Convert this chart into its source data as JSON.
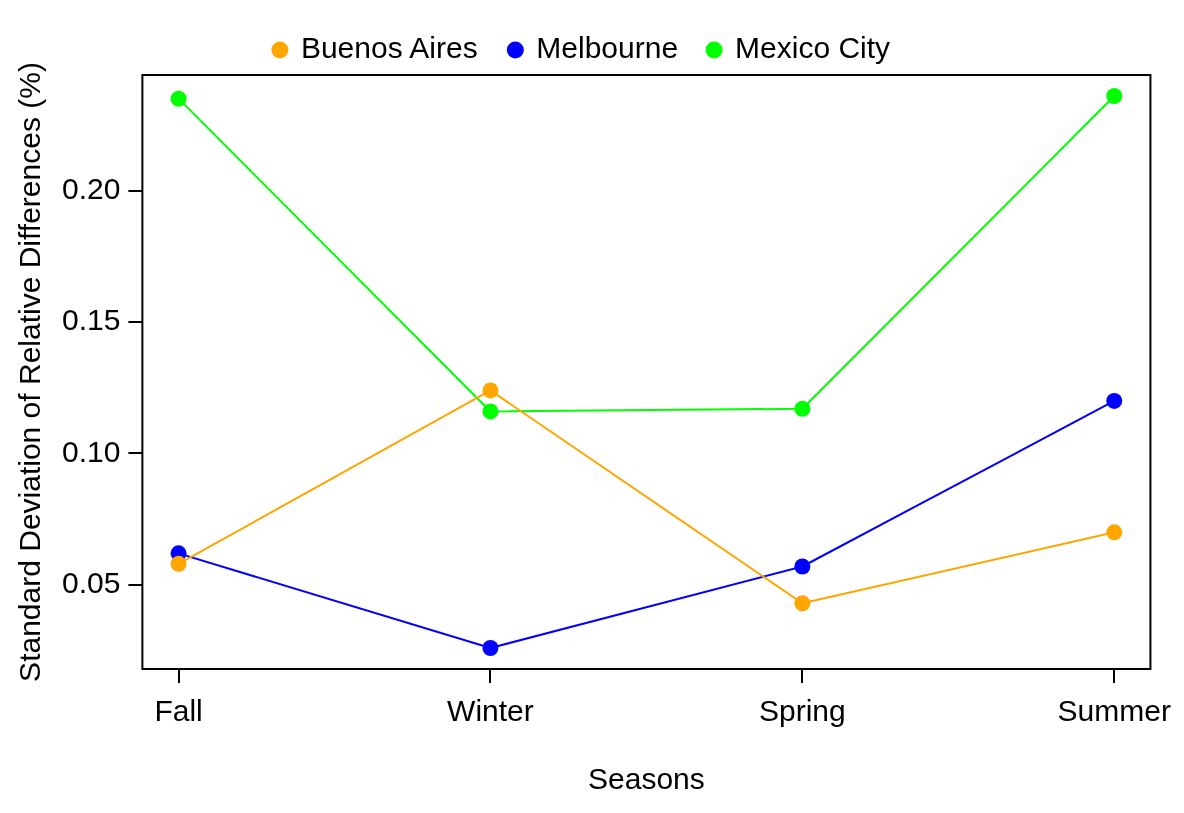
{
  "chart_data": {
    "type": "line",
    "xlabel": "Seasons",
    "ylabel": "Standard Deviation of Relative Differences (%)",
    "categories": [
      "Fall",
      "Winter",
      "Spring",
      "Summer"
    ],
    "series": [
      {
        "name": "Buenos Aires",
        "color": "#ffa500",
        "values": [
          0.058,
          0.124,
          0.043,
          0.07
        ]
      },
      {
        "name": "Melbourne",
        "color": "#0000ff",
        "values": [
          0.062,
          0.026,
          0.057,
          0.12
        ]
      },
      {
        "name": "Mexico City",
        "color": "#00ff00",
        "values": [
          0.235,
          0.116,
          0.117,
          0.236
        ]
      }
    ],
    "ylim": [
      0.018,
      0.244
    ],
    "yticks": [
      {
        "value": 0.05,
        "label": "0.05"
      },
      {
        "value": 0.1,
        "label": "0.10"
      },
      {
        "value": 0.15,
        "label": "0.15"
      },
      {
        "value": 0.2,
        "label": "0.20"
      }
    ],
    "grid": false,
    "legend": "top",
    "marker": "circle",
    "line_style": "solid"
  }
}
